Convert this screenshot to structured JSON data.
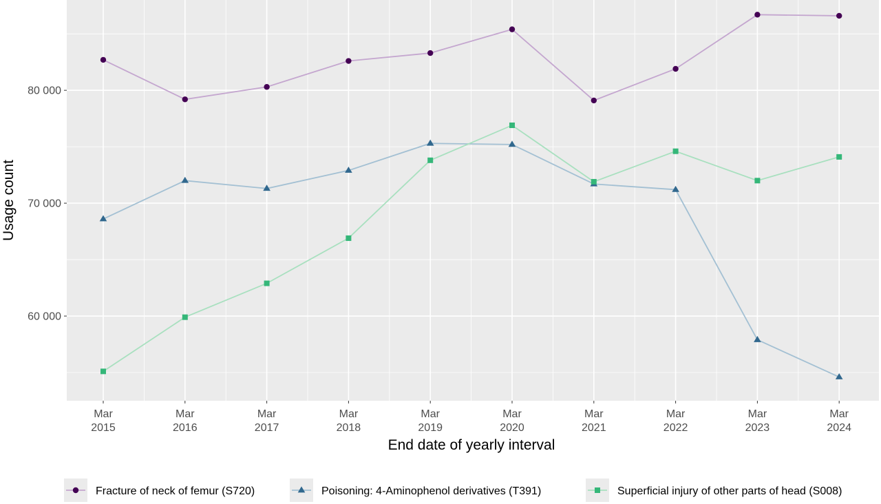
{
  "chart_data": {
    "type": "line",
    "title": "",
    "xlabel": "End date of yearly interval",
    "ylabel": "Usage count",
    "categories": [
      [
        "Mar",
        "2015"
      ],
      [
        "Mar",
        "2016"
      ],
      [
        "Mar",
        "2017"
      ],
      [
        "Mar",
        "2018"
      ],
      [
        "Mar",
        "2019"
      ],
      [
        "Mar",
        "2020"
      ],
      [
        "Mar",
        "2021"
      ],
      [
        "Mar",
        "2022"
      ],
      [
        "Mar",
        "2023"
      ],
      [
        "Mar",
        "2024"
      ]
    ],
    "y_ticks": [
      {
        "value": 60000,
        "label": "60 000"
      },
      {
        "value": 70000,
        "label": "70 000"
      },
      {
        "value": 80000,
        "label": "80 000"
      }
    ],
    "ylim": [
      52500,
      88000
    ],
    "grid": true,
    "legend_position": "bottom",
    "series": [
      {
        "name": "Fracture of neck of femur (S720)",
        "marker": "circle",
        "marker_color": "#440154",
        "line_color": "#c4a6cf",
        "values": [
          82700,
          79200,
          80300,
          82600,
          83300,
          85400,
          79100,
          81900,
          86700,
          86600
        ]
      },
      {
        "name": "Poisoning: 4-Aminophenol derivatives (T391)",
        "marker": "triangle",
        "marker_color": "#31688e",
        "line_color": "#a3c0d3",
        "values": [
          68600,
          72000,
          71300,
          72900,
          75300,
          75200,
          71700,
          71200,
          57900,
          54600
        ]
      },
      {
        "name": "Superficial injury of other parts of head (S008)",
        "marker": "square",
        "marker_color": "#35b779",
        "line_color": "#a8e0bf",
        "values": [
          55100,
          59900,
          62900,
          66900,
          73800,
          76900,
          71900,
          74600,
          72000,
          74100
        ]
      }
    ]
  }
}
